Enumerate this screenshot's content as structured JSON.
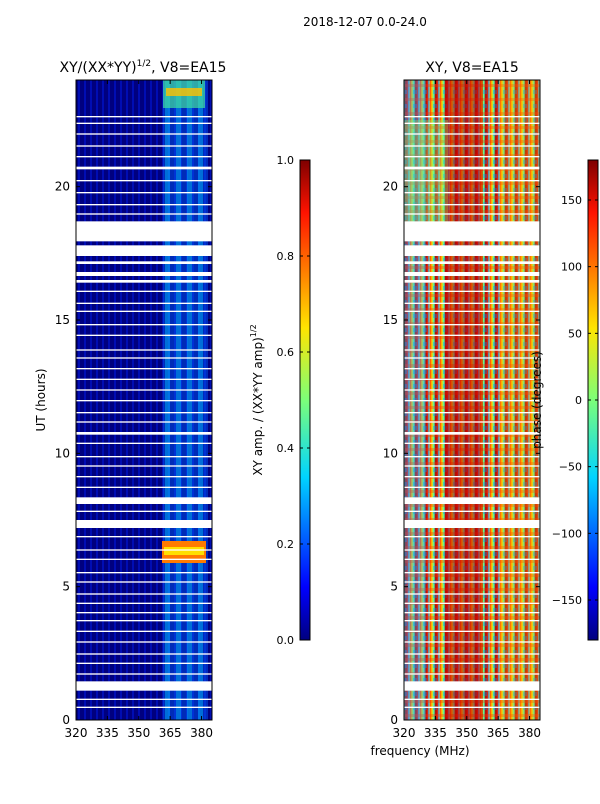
{
  "figure_title": "2018-12-07 0.0-24.0",
  "shared_xlabel": "frequency (MHz)",
  "colors": {
    "panel_base": "#00007f",
    "gap": "#ffffff",
    "axis": "#000000"
  },
  "chart_data": [
    {
      "type": "heatmap",
      "title": "XY/(XX*YY)",
      "title_sup": "1/2",
      "title_suffix": ", V8=EA15",
      "xlabel": "",
      "ylabel": "UT (hours)",
      "xlim": [
        320,
        385
      ],
      "ylim": [
        0,
        24
      ],
      "xticks": [
        "320",
        "335",
        "350",
        "365",
        "380"
      ],
      "xtick_values": [
        320,
        335,
        350,
        365,
        380
      ],
      "yticks": [
        "0",
        "5",
        "10",
        "15",
        "20"
      ],
      "ytick_values": [
        0,
        5,
        10,
        15,
        20
      ],
      "gaps_hours": [
        [
          0.45,
          0.5
        ],
        [
          0.75,
          0.8
        ],
        [
          1.1,
          1.45
        ],
        [
          1.7,
          1.75
        ],
        [
          2.1,
          2.15
        ],
        [
          2.45,
          2.5
        ],
        [
          2.9,
          2.95
        ],
        [
          3.3,
          3.35
        ],
        [
          3.7,
          3.75
        ],
        [
          4.0,
          4.05
        ],
        [
          4.35,
          4.4
        ],
        [
          4.7,
          4.75
        ],
        [
          5.15,
          5.2
        ],
        [
          5.5,
          5.55
        ],
        [
          6.0,
          6.05
        ],
        [
          6.35,
          6.4
        ],
        [
          6.85,
          6.9
        ],
        [
          7.2,
          7.5
        ],
        [
          7.8,
          7.85
        ],
        [
          8.1,
          8.35
        ],
        [
          8.7,
          8.75
        ],
        [
          9.1,
          9.15
        ],
        [
          9.5,
          9.55
        ],
        [
          9.85,
          9.9
        ],
        [
          10.35,
          10.4
        ],
        [
          10.7,
          10.8
        ],
        [
          11.15,
          11.2
        ],
        [
          11.5,
          11.55
        ],
        [
          11.95,
          12.0
        ],
        [
          12.35,
          12.4
        ],
        [
          12.75,
          12.8
        ],
        [
          13.15,
          13.2
        ],
        [
          13.55,
          13.6
        ],
        [
          13.85,
          13.9
        ],
        [
          14.4,
          14.45
        ],
        [
          14.8,
          14.85
        ],
        [
          15.3,
          15.35
        ],
        [
          15.6,
          15.65
        ],
        [
          16.05,
          16.1
        ],
        [
          16.4,
          16.5
        ],
        [
          16.65,
          16.8
        ],
        [
          17.1,
          17.2
        ],
        [
          17.4,
          17.8
        ],
        [
          17.95,
          18.7
        ],
        [
          18.95,
          19.0
        ],
        [
          19.3,
          19.35
        ],
        [
          19.75,
          19.8
        ],
        [
          20.2,
          20.25
        ],
        [
          20.65,
          20.75
        ],
        [
          21.1,
          21.15
        ],
        [
          21.5,
          21.55
        ],
        [
          21.95,
          22.0
        ],
        [
          22.35,
          22.4
        ],
        [
          22.6,
          22.65
        ]
      ]
    },
    {
      "type": "heatmap",
      "title": "XY, V8=EA15",
      "xlabel": "frequency (MHz)",
      "ylabel": "",
      "xlim": [
        320,
        385
      ],
      "ylim": [
        0,
        24
      ],
      "xticks": [
        "320",
        "335",
        "350",
        "365",
        "380"
      ],
      "xtick_values": [
        320,
        335,
        350,
        365,
        380
      ],
      "yticks": [
        "0",
        "5",
        "10",
        "15",
        "20"
      ],
      "ytick_values": [
        0,
        5,
        10,
        15,
        20
      ],
      "gaps_hours": [
        [
          0.45,
          0.5
        ],
        [
          0.75,
          0.8
        ],
        [
          1.1,
          1.45
        ],
        [
          1.7,
          1.75
        ],
        [
          2.1,
          2.15
        ],
        [
          2.45,
          2.5
        ],
        [
          2.9,
          2.95
        ],
        [
          3.3,
          3.35
        ],
        [
          3.7,
          3.75
        ],
        [
          4.0,
          4.05
        ],
        [
          4.35,
          4.4
        ],
        [
          4.7,
          4.75
        ],
        [
          5.15,
          5.2
        ],
        [
          5.5,
          5.55
        ],
        [
          6.0,
          6.05
        ],
        [
          6.35,
          6.4
        ],
        [
          6.85,
          6.9
        ],
        [
          7.2,
          7.5
        ],
        [
          7.8,
          7.85
        ],
        [
          8.1,
          8.35
        ],
        [
          8.7,
          8.75
        ],
        [
          9.1,
          9.15
        ],
        [
          9.5,
          9.55
        ],
        [
          9.85,
          9.9
        ],
        [
          10.35,
          10.4
        ],
        [
          10.7,
          10.8
        ],
        [
          11.15,
          11.2
        ],
        [
          11.5,
          11.55
        ],
        [
          11.95,
          12.0
        ],
        [
          12.35,
          12.4
        ],
        [
          12.75,
          12.8
        ],
        [
          13.15,
          13.2
        ],
        [
          13.55,
          13.6
        ],
        [
          13.85,
          13.9
        ],
        [
          14.4,
          14.45
        ],
        [
          14.8,
          14.85
        ],
        [
          15.3,
          15.35
        ],
        [
          15.6,
          15.65
        ],
        [
          16.05,
          16.1
        ],
        [
          16.4,
          16.5
        ],
        [
          16.65,
          16.8
        ],
        [
          17.1,
          17.2
        ],
        [
          17.4,
          17.8
        ],
        [
          17.95,
          18.7
        ],
        [
          18.95,
          19.0
        ],
        [
          19.3,
          19.35
        ],
        [
          19.75,
          19.8
        ],
        [
          20.2,
          20.25
        ],
        [
          20.65,
          20.75
        ],
        [
          21.1,
          21.15
        ],
        [
          21.5,
          21.55
        ],
        [
          21.95,
          22.0
        ],
        [
          22.35,
          22.4
        ],
        [
          22.6,
          22.65
        ]
      ]
    },
    {
      "type": "colorbar",
      "label": "XY amp. / (XX*YY amp)",
      "label_sup": "1/2",
      "range": [
        0.0,
        1.0
      ],
      "ticks": [
        "0.0",
        "0.2",
        "0.4",
        "0.6",
        "0.8",
        "1.0"
      ],
      "tick_values": [
        0.0,
        0.2,
        0.4,
        0.6,
        0.8,
        1.0
      ]
    },
    {
      "type": "colorbar",
      "label": "phase (degrees)",
      "range": [
        -180,
        180
      ],
      "ticks": [
        "−150",
        "−100",
        "−50",
        "0",
        "50",
        "100",
        "150"
      ],
      "tick_values": [
        -150,
        -100,
        -50,
        0,
        50,
        100,
        150
      ]
    }
  ]
}
